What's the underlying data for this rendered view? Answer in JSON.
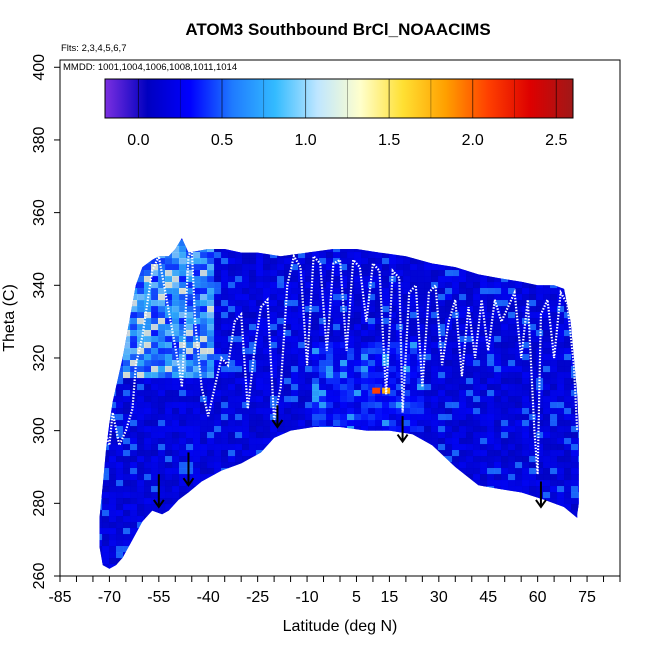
{
  "chart_data": {
    "type": "heatmap",
    "title": "ATOM3 Southbound BrCl_NOAACIMS",
    "flights_note": "Flts: 2,3,4,5,6,7",
    "dates_note": "MMDD: 1001,1004,1006,1008,1011,1014",
    "xlabel": "Latitude (deg N)",
    "ylabel": "Theta (C)",
    "xlim": [
      -85,
      85
    ],
    "ylim": [
      260,
      402
    ],
    "x_ticks": [
      -85,
      -70,
      -55,
      -40,
      -25,
      -10,
      5,
      15,
      30,
      45,
      60,
      75
    ],
    "x_tick_labels": [
      "-85",
      "-70",
      "-55",
      "-40",
      "-25",
      "-10",
      "5",
      "15",
      "30",
      "45",
      "60",
      "75"
    ],
    "y_ticks": [
      260,
      280,
      300,
      320,
      340,
      360,
      380,
      400
    ],
    "y_tick_labels": [
      "260",
      "280",
      "300",
      "320",
      "340",
      "360",
      "380",
      "400"
    ],
    "colorbar": {
      "range": [
        -0.2,
        2.6
      ],
      "ticks": [
        0.0,
        0.5,
        1.0,
        1.5,
        2.0,
        2.5
      ],
      "tick_labels": [
        "0.0",
        "0.5",
        "1.0",
        "1.5",
        "2.0",
        "2.5"
      ],
      "colors": [
        "#7B2FE0",
        "#0000C0",
        "#0000FF",
        "#1F7BFF",
        "#33BBFF",
        "#BFE6FF",
        "#FFFFCC",
        "#FFE033",
        "#FFA000",
        "#FF4000",
        "#DD0000",
        "#A01818"
      ]
    },
    "field_upper_boundary": [
      [
        -69,
        308
      ],
      [
        -66,
        320
      ],
      [
        -64,
        330
      ],
      [
        -62,
        340
      ],
      [
        -60,
        345
      ],
      [
        -57,
        347
      ],
      [
        -55,
        348
      ],
      [
        -52,
        348
      ],
      [
        -50,
        350
      ],
      [
        -48,
        353
      ],
      [
        -46,
        349
      ],
      [
        -40,
        350
      ],
      [
        -35,
        350
      ],
      [
        -30,
        349
      ],
      [
        -25,
        349
      ],
      [
        -18,
        348
      ],
      [
        -10,
        349
      ],
      [
        -2,
        350
      ],
      [
        5,
        350
      ],
      [
        12,
        349
      ],
      [
        20,
        348
      ],
      [
        28,
        346
      ],
      [
        35,
        345
      ],
      [
        42,
        343
      ],
      [
        48,
        342
      ],
      [
        55,
        341
      ],
      [
        60,
        340
      ],
      [
        65,
        340
      ],
      [
        68,
        339
      ],
      [
        70,
        330
      ],
      [
        71,
        320
      ],
      [
        72,
        310
      ],
      [
        72.5,
        300
      ],
      [
        72.5,
        280
      ],
      [
        72,
        277
      ]
    ],
    "field_lower_boundary": [
      [
        72,
        276
      ],
      [
        68,
        279
      ],
      [
        62,
        281
      ],
      [
        55,
        283
      ],
      [
        48,
        284
      ],
      [
        42,
        285
      ],
      [
        35,
        290
      ],
      [
        28,
        296
      ],
      [
        22,
        299
      ],
      [
        15,
        300
      ],
      [
        8,
        300
      ],
      [
        0,
        301
      ],
      [
        -8,
        301
      ],
      [
        -15,
        300
      ],
      [
        -20,
        298
      ],
      [
        -24,
        294
      ],
      [
        -30,
        291
      ],
      [
        -36,
        289
      ],
      [
        -42,
        286
      ],
      [
        -46,
        283
      ],
      [
        -49,
        281
      ],
      [
        -52,
        278
      ],
      [
        -54,
        277
      ],
      [
        -57,
        278
      ],
      [
        -60,
        275
      ],
      [
        -63,
        270
      ],
      [
        -66,
        265
      ],
      [
        -68,
        263
      ],
      [
        -70,
        262
      ],
      [
        -72,
        263
      ],
      [
        -73,
        268
      ],
      [
        -73,
        276
      ],
      [
        -72,
        285
      ],
      [
        -71,
        295
      ],
      [
        -70,
        302
      ],
      [
        -69,
        308
      ]
    ],
    "high_values": [
      {
        "lat": 11,
        "theta": 311,
        "value": 2.1
      },
      {
        "lat": 14,
        "theta": 311,
        "value": 1.8
      }
    ],
    "arrows_lat": [
      -55,
      -46,
      -19,
      19,
      61
    ],
    "arrows_theta_top": [
      288,
      294,
      307,
      304,
      286
    ],
    "arrows_theta_bottom": [
      279,
      285,
      301,
      297,
      279
    ],
    "flight_track": [
      [
        -75,
        289
      ],
      [
        -72,
        302
      ],
      [
        -70,
        296
      ],
      [
        -69,
        305
      ],
      [
        -67,
        296
      ],
      [
        -65,
        300
      ],
      [
        -63,
        306
      ],
      [
        -62,
        318
      ],
      [
        -60,
        326
      ],
      [
        -58,
        338
      ],
      [
        -57,
        344
      ],
      [
        -55,
        348
      ],
      [
        -53,
        338
      ],
      [
        -51,
        328
      ],
      [
        -49,
        318
      ],
      [
        -48,
        312
      ],
      [
        -47,
        330
      ],
      [
        -46,
        348
      ],
      [
        -45,
        350
      ],
      [
        -44,
        330
      ],
      [
        -42,
        312
      ],
      [
        -40,
        304
      ],
      [
        -38,
        312
      ],
      [
        -36,
        320
      ],
      [
        -34,
        318
      ],
      [
        -32,
        330
      ],
      [
        -30,
        332
      ],
      [
        -28,
        306
      ],
      [
        -26,
        322
      ],
      [
        -24,
        334
      ],
      [
        -22,
        336
      ],
      [
        -20,
        303
      ],
      [
        -18,
        312
      ],
      [
        -16,
        340
      ],
      [
        -14,
        348
      ],
      [
        -12,
        345
      ],
      [
        -10,
        318
      ],
      [
        -8,
        348
      ],
      [
        -6,
        346
      ],
      [
        -4,
        322
      ],
      [
        -2,
        346
      ],
      [
        0,
        347
      ],
      [
        2,
        322
      ],
      [
        4,
        347
      ],
      [
        6,
        345
      ],
      [
        8,
        330
      ],
      [
        10,
        346
      ],
      [
        12,
        344
      ],
      [
        14,
        310
      ],
      [
        16,
        344
      ],
      [
        18,
        342
      ],
      [
        19,
        305
      ],
      [
        21,
        338
      ],
      [
        23,
        340
      ],
      [
        25,
        312
      ],
      [
        27,
        338
      ],
      [
        29,
        340
      ],
      [
        31,
        318
      ],
      [
        33,
        330
      ],
      [
        35,
        336
      ],
      [
        37,
        315
      ],
      [
        39,
        334
      ],
      [
        41,
        320
      ],
      [
        43,
        336
      ],
      [
        45,
        322
      ],
      [
        47,
        336
      ],
      [
        49,
        330
      ],
      [
        51,
        334
      ],
      [
        53,
        338
      ],
      [
        55,
        320
      ],
      [
        57,
        336
      ],
      [
        59,
        300
      ],
      [
        60,
        288
      ],
      [
        61,
        332
      ],
      [
        63,
        336
      ],
      [
        65,
        320
      ],
      [
        67,
        338
      ],
      [
        69,
        335
      ],
      [
        71,
        318
      ],
      [
        72,
        300
      ]
    ]
  }
}
